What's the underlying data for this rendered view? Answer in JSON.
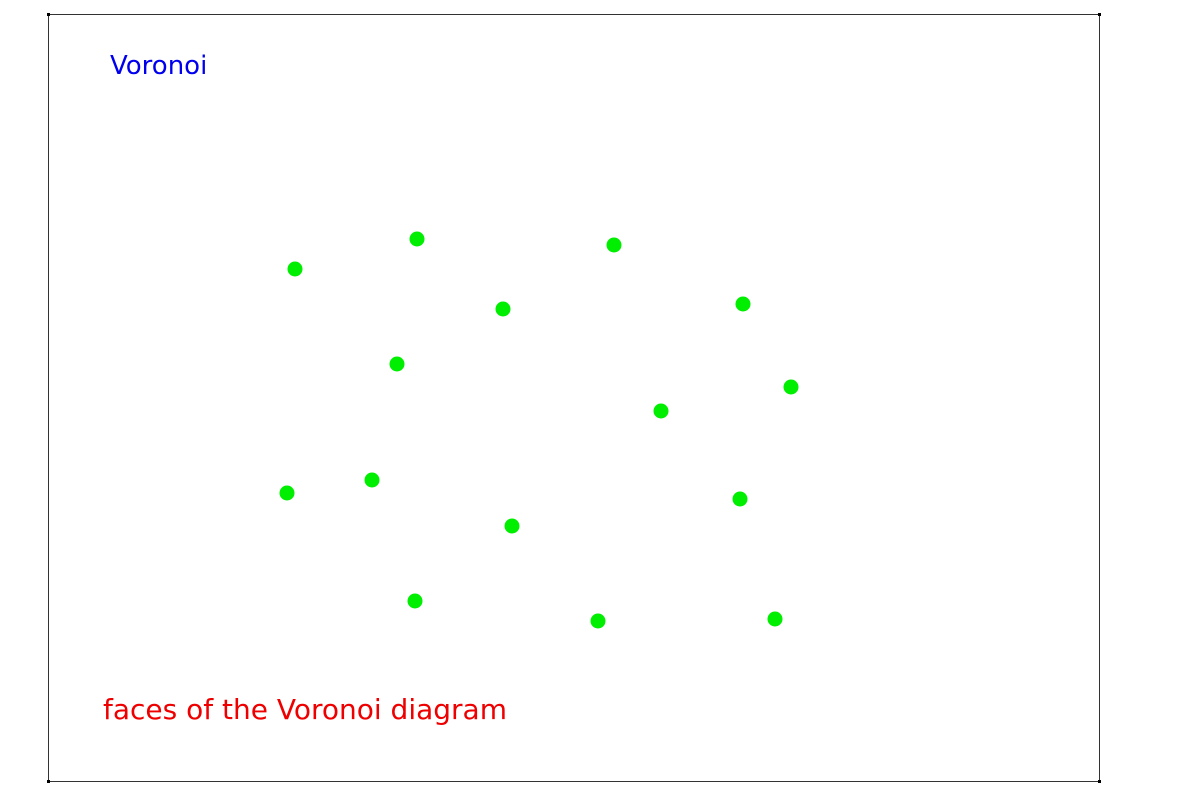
{
  "diagram": {
    "title": "Voronoi",
    "caption": "faces of the Voronoi diagram",
    "colors": {
      "title": "#0000ee",
      "caption": "#ee0000",
      "sites": "#00ee00",
      "frame": "#333333",
      "background": "#ffffff"
    },
    "sites": [
      {
        "id": 1
      },
      {
        "id": 2
      },
      {
        "id": 3
      },
      {
        "id": 4
      },
      {
        "id": 5
      },
      {
        "id": 6
      },
      {
        "id": 7
      },
      {
        "id": 8
      },
      {
        "id": 9
      },
      {
        "id": 10
      },
      {
        "id": 11
      },
      {
        "id": 12
      },
      {
        "id": 13
      },
      {
        "id": 14
      },
      {
        "id": 15
      }
    ]
  }
}
